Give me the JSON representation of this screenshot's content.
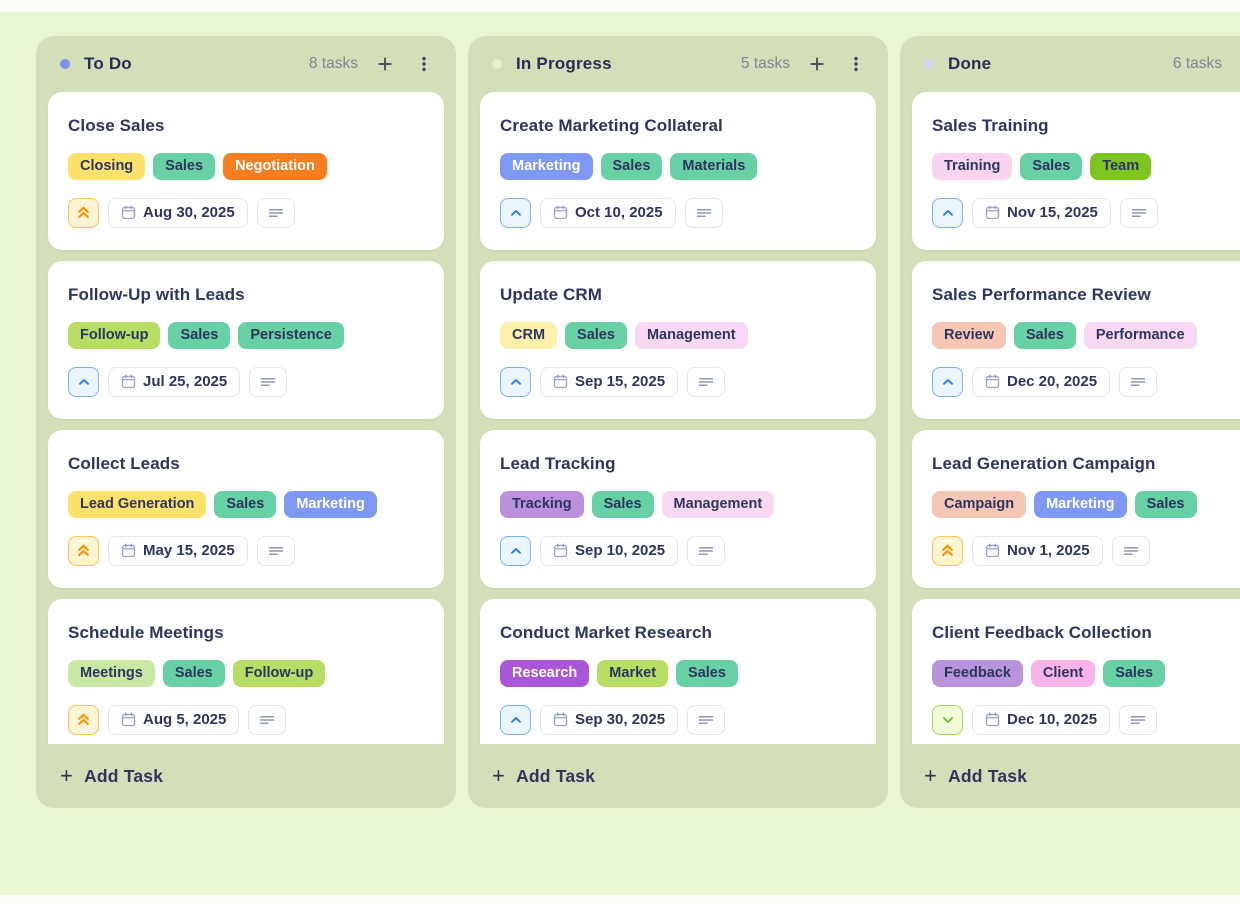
{
  "board": {
    "add_task_label": "Add Task",
    "columns": [
      {
        "name": "To Do",
        "count_label": "8 tasks",
        "dot_color": "#7b93e8",
        "tasks": [
          {
            "title": "Close Sales",
            "tags": [
              {
                "label": "Closing",
                "bg": "#fce26b",
                "fg": "#2e355e"
              },
              {
                "label": "Sales",
                "bg": "#68d0a5",
                "fg": "#2e355e"
              },
              {
                "label": "Negotiation",
                "bg": "#f67d20",
                "fg": "#ffffff"
              }
            ],
            "priority": "high",
            "date": "Aug 30, 2025"
          },
          {
            "title": "Follow-Up with Leads",
            "tags": [
              {
                "label": "Follow-up",
                "bg": "#b7dd64",
                "fg": "#2e355e"
              },
              {
                "label": "Sales",
                "bg": "#68d0a5",
                "fg": "#2e355e"
              },
              {
                "label": "Persistence",
                "bg": "#68d0a5",
                "fg": "#2e355e"
              }
            ],
            "priority": "medium",
            "date": "Jul 25, 2025"
          },
          {
            "title": "Collect Leads",
            "tags": [
              {
                "label": "Lead Generation",
                "bg": "#fce26b",
                "fg": "#2e355e"
              },
              {
                "label": "Sales",
                "bg": "#68d0a5",
                "fg": "#2e355e"
              },
              {
                "label": "Marketing",
                "bg": "#7e98f3",
                "fg": "#ffffff"
              }
            ],
            "priority": "high",
            "date": "May 15, 2025"
          },
          {
            "title": "Schedule Meetings",
            "tags": [
              {
                "label": "Meetings",
                "bg": "#c8e9a4",
                "fg": "#2e355e"
              },
              {
                "label": "Sales",
                "bg": "#68d0a5",
                "fg": "#2e355e"
              },
              {
                "label": "Follow-up",
                "bg": "#b7dd64",
                "fg": "#2e355e"
              }
            ],
            "priority": "high",
            "date": "Aug 5, 2025"
          }
        ]
      },
      {
        "name": "In Progress",
        "count_label": "5 tasks",
        "dot_color": "#e9f2c4",
        "tasks": [
          {
            "title": "Create Marketing Collateral",
            "tags": [
              {
                "label": "Marketing",
                "bg": "#7e98f3",
                "fg": "#ffffff"
              },
              {
                "label": "Sales",
                "bg": "#68d0a5",
                "fg": "#2e355e"
              },
              {
                "label": "Materials",
                "bg": "#68d0a5",
                "fg": "#2e355e"
              }
            ],
            "priority": "medium",
            "date": "Oct 10, 2025"
          },
          {
            "title": "Update CRM",
            "tags": [
              {
                "label": "CRM",
                "bg": "#fbf1ab",
                "fg": "#2e355e"
              },
              {
                "label": "Sales",
                "bg": "#68d0a5",
                "fg": "#2e355e"
              },
              {
                "label": "Management",
                "bg": "#f8d8f3",
                "fg": "#2e355e"
              }
            ],
            "priority": "medium",
            "date": "Sep 15, 2025"
          },
          {
            "title": "Lead Tracking",
            "tags": [
              {
                "label": "Tracking",
                "bg": "#bc90dd",
                "fg": "#2e355e"
              },
              {
                "label": "Sales",
                "bg": "#68d0a5",
                "fg": "#2e355e"
              },
              {
                "label": "Management",
                "bg": "#f8d8f3",
                "fg": "#2e355e"
              }
            ],
            "priority": "medium",
            "date": "Sep 10, 2025"
          },
          {
            "title": "Conduct Market Research",
            "tags": [
              {
                "label": "Research",
                "bg": "#a956d9",
                "fg": "#ffffff"
              },
              {
                "label": "Market",
                "bg": "#b7dd64",
                "fg": "#2e355e"
              },
              {
                "label": "Sales",
                "bg": "#68d0a5",
                "fg": "#2e355e"
              }
            ],
            "priority": "medium",
            "date": "Sep 30, 2025"
          }
        ]
      },
      {
        "name": "Done",
        "count_label": "6 tasks",
        "dot_color": "#ccd5ee",
        "tasks": [
          {
            "title": "Sales Training",
            "tags": [
              {
                "label": "Training",
                "bg": "#f9d4ef",
                "fg": "#2e355e"
              },
              {
                "label": "Sales",
                "bg": "#68d0a5",
                "fg": "#2e355e"
              },
              {
                "label": "Team",
                "bg": "#7dc520",
                "fg": "#2e355e"
              }
            ],
            "priority": "medium",
            "date": "Nov 15, 2025"
          },
          {
            "title": "Sales Performance Review",
            "tags": [
              {
                "label": "Review",
                "bg": "#f6c6b5",
                "fg": "#2e355e"
              },
              {
                "label": "Sales",
                "bg": "#68d0a5",
                "fg": "#2e355e"
              },
              {
                "label": "Performance",
                "bg": "#f8d8f3",
                "fg": "#2e355e"
              }
            ],
            "priority": "medium",
            "date": "Dec 20, 2025"
          },
          {
            "title": "Lead Generation Campaign",
            "tags": [
              {
                "label": "Campaign",
                "bg": "#f6c6b5",
                "fg": "#2e355e"
              },
              {
                "label": "Marketing",
                "bg": "#7e98f3",
                "fg": "#ffffff"
              },
              {
                "label": "Sales",
                "bg": "#68d0a5",
                "fg": "#2e355e"
              }
            ],
            "priority": "high",
            "date": "Nov 1, 2025"
          },
          {
            "title": "Client Feedback Collection",
            "tags": [
              {
                "label": "Feedback",
                "bg": "#b794db",
                "fg": "#2e355e"
              },
              {
                "label": "Client",
                "bg": "#f8b4e8",
                "fg": "#2e355e"
              },
              {
                "label": "Sales",
                "bg": "#68d0a5",
                "fg": "#2e355e"
              }
            ],
            "priority": "low",
            "date": "Dec 10, 2025"
          }
        ]
      }
    ]
  },
  "priorities": {
    "high": {
      "icon": "chevrons-up-icon",
      "fg": "#f59502",
      "bg": "#fdf3d5",
      "border": "#f6c64d"
    },
    "medium": {
      "icon": "chevron-up-icon",
      "fg": "#2f80ed",
      "bg": "#eaf5fe",
      "border": "#74b4f2"
    },
    "low": {
      "icon": "chevron-down-icon",
      "fg": "#74c043",
      "bg": "#f0fbd7",
      "border": "#a0da52"
    }
  },
  "icons": {
    "plus_glyph": "+",
    "header_add": "plus-icon",
    "header_menu": "kebab-menu-icon",
    "date": "calendar-icon",
    "description": "description-lines-icon"
  },
  "colors": {
    "page_bg": "#e9f6d3",
    "column_bg": "#d3dfb8",
    "card_bg": "#ffffff",
    "title_text": "#262e57",
    "muted_text": "#7f8597",
    "edge_strip": "#fdfdf6"
  }
}
